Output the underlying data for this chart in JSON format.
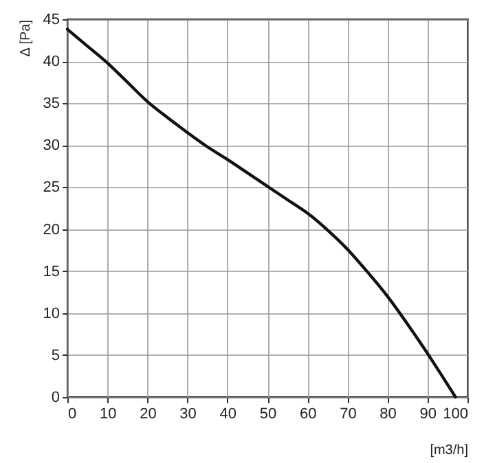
{
  "chart_data": {
    "type": "line",
    "xlabel": "[m3/h]",
    "ylabel": "Δ [Pa]",
    "x": [
      0,
      5,
      10,
      15,
      20,
      25,
      30,
      35,
      40,
      45,
      50,
      55,
      60,
      65,
      70,
      75,
      80,
      85,
      90,
      93,
      97
    ],
    "series": [
      {
        "color": "#111111",
        "values": [
          43.8,
          41.8,
          39.8,
          37.5,
          35.2,
          33.3,
          31.5,
          29.8,
          28.3,
          26.7,
          25.1,
          23.5,
          21.9,
          19.9,
          17.6,
          14.9,
          12,
          8.7,
          5.2,
          3,
          0
        ]
      }
    ],
    "xlim": [
      0,
      100
    ],
    "xticks": [
      0,
      10,
      20,
      30,
      40,
      50,
      60,
      70,
      80,
      90,
      100
    ],
    "ylim": [
      0,
      45
    ],
    "yticks": [
      0,
      5,
      10,
      15,
      20,
      25,
      30,
      35,
      40,
      45
    ],
    "grid": true,
    "marker": "none",
    "line_style": "solid"
  }
}
